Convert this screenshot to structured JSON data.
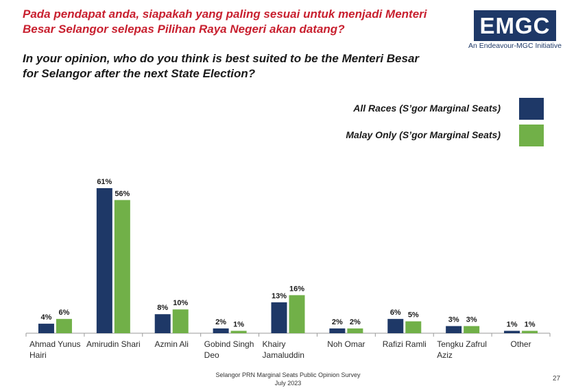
{
  "header": {
    "title_malay_line1": "Pada pendapat anda, siapakah yang paling sesuai untuk menjadi Menteri",
    "title_malay_line2": "Besar Selangor selepas Pilihan Raya Negeri akan datang?",
    "title_english_line1": "In your opinion, who do you think is best suited to be the Menteri Besar",
    "title_english_line2": "for Selangor after the next State Election?"
  },
  "logo": {
    "text": "EMGC",
    "tagline": "An Endeavour-MGC Initiative"
  },
  "footer": {
    "survey": "Selangor PRN Marginal Seats Public Opinion Survey",
    "date": "July 2023",
    "page": "27"
  },
  "colors": {
    "all_races": "#1e3867",
    "malay_only": "#71b048",
    "title_red": "#c8202f"
  },
  "chart_data": {
    "type": "bar",
    "categories": [
      [
        "Ahmad Yunus",
        "Hairi"
      ],
      [
        "Amirudin Shari"
      ],
      [
        "Azmin Ali"
      ],
      [
        "Gobind Singh",
        "Deo"
      ],
      [
        "Khairy",
        "Jamaluddin"
      ],
      [
        "Noh Omar"
      ],
      [
        "Rafizi Ramli"
      ],
      [
        "Tengku Zafrul",
        "Aziz"
      ],
      [
        "Other"
      ]
    ],
    "series": [
      {
        "name": "All Races (S’gor Marginal Seats)",
        "values": [
          4,
          61,
          8,
          2,
          13,
          2,
          6,
          3,
          1
        ],
        "labels": [
          "4%",
          "61%",
          "8%",
          "2%",
          "13%",
          "2%",
          "6%",
          "3%",
          "1%"
        ]
      },
      {
        "name": "Malay Only (S’gor Marginal Seats)",
        "values": [
          6,
          56,
          10,
          1,
          16,
          2,
          5,
          3,
          1
        ],
        "labels": [
          "6%",
          "56%",
          "10%",
          "1%",
          "16%",
          "2%",
          "5%",
          "3%",
          "1%"
        ]
      }
    ],
    "ylim": [
      0,
      61
    ],
    "legend_position": "top-right",
    "grid": false
  }
}
